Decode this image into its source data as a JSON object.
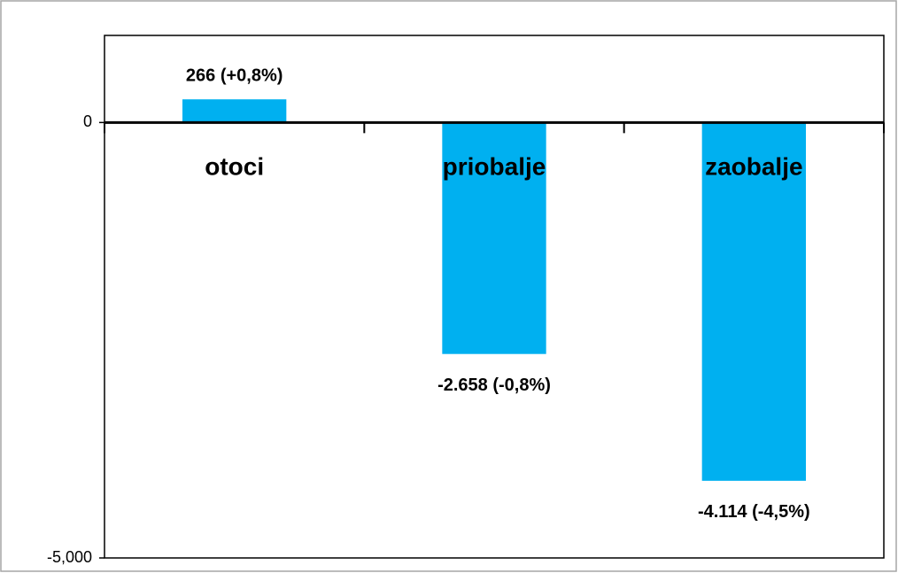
{
  "chart_data": {
    "type": "bar",
    "categories": [
      "otoci",
      "priobalje",
      "zaobalje"
    ],
    "values": [
      266,
      -2658,
      -4114
    ],
    "value_labels": [
      "266 (+0,8%)",
      "-2.658 (-0,8%)",
      "-4.114 (-4,5%)"
    ],
    "color": "#00b0f0",
    "ylim": [
      -5000,
      1000
    ],
    "yticks": [
      0,
      {
        "value": -5000,
        "label": "-5,000"
      }
    ]
  }
}
